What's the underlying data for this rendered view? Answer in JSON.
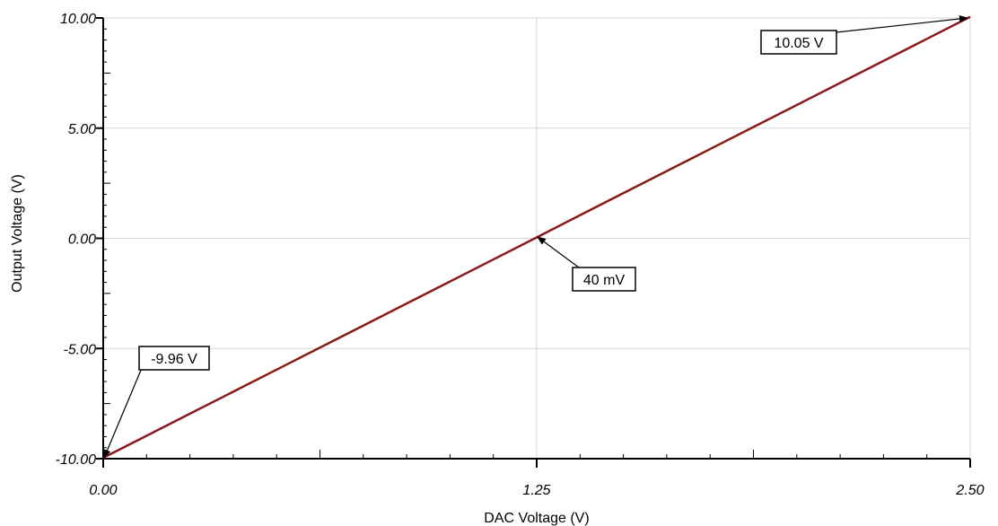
{
  "chart_data": {
    "type": "line",
    "xlabel": "DAC Voltage (V)",
    "ylabel": "Output Voltage (V)",
    "xlim": [
      0,
      2.5
    ],
    "ylim": [
      -10,
      10
    ],
    "x_ticks": [
      "0.00",
      "1.25",
      "2.50"
    ],
    "y_ticks": [
      "-10.00",
      "-5.00",
      "0.00",
      "5.00",
      "10.00"
    ],
    "grid": true,
    "legend": "none",
    "series": [
      {
        "color": "#8b1a1a",
        "x": [
          0,
          0.125,
          0.25,
          0.375,
          0.5,
          0.625,
          0.75,
          0.875,
          1.0,
          1.125,
          1.25,
          1.375,
          1.5,
          1.625,
          1.75,
          1.875,
          2.0,
          2.125,
          2.25,
          2.375,
          2.5
        ],
        "y": [
          -9.96,
          -8.96,
          -7.96,
          -6.96,
          -5.96,
          -4.96,
          -3.96,
          -2.96,
          -1.96,
          -0.96,
          0.04,
          1.05,
          2.05,
          3.05,
          4.05,
          5.05,
          6.05,
          7.05,
          8.05,
          9.05,
          10.05
        ]
      }
    ],
    "annotations": [
      {
        "text": "10.05 V",
        "x": 2.5,
        "y": 10.05
      },
      {
        "text": "40 mV",
        "x": 1.25,
        "y": 0.04
      },
      {
        "text": "-9.96 V",
        "x": 0,
        "y": -9.96
      }
    ]
  }
}
